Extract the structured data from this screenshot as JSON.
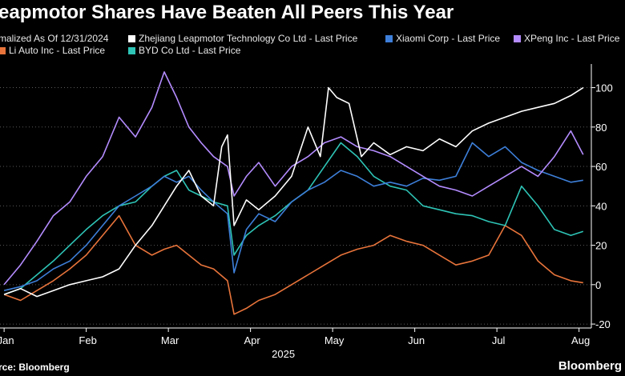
{
  "title": "eapmotor Shares Have Beaten All Peers This Year",
  "source": "rce: Bloomberg",
  "brand": "Bloomberg",
  "chart_data": {
    "type": "line",
    "title": "eapmotor Shares Have Beaten All Peers This Year",
    "legend_prefix": "malized As Of 12/31/2024",
    "x_ticks": [
      "Jan",
      "Feb",
      "Mar",
      "Apr",
      "May",
      "Jun",
      "Jul",
      "Aug"
    ],
    "x_tick_positions": [
      0,
      1,
      2,
      3,
      4,
      5,
      6,
      7
    ],
    "year_label": "2025",
    "xlim": [
      -0.05,
      7.15
    ],
    "ylim": [
      -22,
      112
    ],
    "y_ticks": [
      -20,
      0,
      20,
      40,
      60,
      80,
      100
    ],
    "y_axis_side": "right",
    "grid": "horizontal dotted",
    "series": [
      {
        "name": "Zhejiang Leapmotor Technology Co Ltd - Last Price",
        "color": "#ffffff",
        "x": [
          0,
          0.2,
          0.4,
          0.6,
          0.8,
          1.0,
          1.2,
          1.4,
          1.6,
          1.8,
          1.95,
          2.1,
          2.25,
          2.4,
          2.55,
          2.65,
          2.72,
          2.8,
          2.95,
          3.1,
          3.3,
          3.5,
          3.7,
          3.85,
          3.95,
          4.05,
          4.2,
          4.35,
          4.5,
          4.7,
          4.9,
          5.1,
          5.3,
          5.5,
          5.7,
          5.9,
          6.1,
          6.3,
          6.5,
          6.7,
          6.9,
          7.05
        ],
        "y": [
          -5,
          -2,
          -6,
          -3,
          0,
          2,
          4,
          8,
          20,
          30,
          40,
          50,
          58,
          45,
          40,
          70,
          76,
          30,
          43,
          38,
          45,
          55,
          80,
          65,
          100,
          95,
          92,
          65,
          72,
          66,
          70,
          68,
          74,
          70,
          78,
          82,
          85,
          88,
          90,
          92,
          96,
          100
        ]
      },
      {
        "name": "Xiaomi Corp - Last Price",
        "color": "#3d7fd9",
        "x": [
          0,
          0.2,
          0.4,
          0.6,
          0.8,
          1.0,
          1.2,
          1.4,
          1.6,
          1.8,
          1.95,
          2.1,
          2.25,
          2.4,
          2.55,
          2.72,
          2.8,
          2.95,
          3.1,
          3.3,
          3.5,
          3.7,
          3.9,
          4.1,
          4.3,
          4.5,
          4.7,
          4.9,
          5.1,
          5.3,
          5.5,
          5.7,
          5.9,
          6.1,
          6.3,
          6.5,
          6.7,
          6.9,
          7.05
        ],
        "y": [
          -3,
          -1,
          2,
          8,
          12,
          20,
          30,
          40,
          45,
          50,
          55,
          52,
          55,
          48,
          42,
          36,
          6,
          28,
          36,
          32,
          42,
          48,
          52,
          58,
          55,
          50,
          52,
          50,
          54,
          53,
          55,
          72,
          65,
          70,
          62,
          58,
          55,
          52,
          53
        ]
      },
      {
        "name": "XPeng Inc - Last Price",
        "color": "#b48cff",
        "x": [
          0,
          0.2,
          0.4,
          0.6,
          0.8,
          1.0,
          1.2,
          1.4,
          1.6,
          1.8,
          1.95,
          2.1,
          2.25,
          2.4,
          2.55,
          2.72,
          2.8,
          2.95,
          3.1,
          3.3,
          3.5,
          3.7,
          3.9,
          4.1,
          4.3,
          4.5,
          4.7,
          4.9,
          5.1,
          5.3,
          5.5,
          5.7,
          5.9,
          6.1,
          6.3,
          6.5,
          6.7,
          6.9,
          7.05
        ],
        "y": [
          0,
          10,
          22,
          35,
          42,
          55,
          65,
          85,
          75,
          90,
          108,
          95,
          80,
          72,
          65,
          60,
          45,
          55,
          62,
          50,
          60,
          65,
          72,
          75,
          70,
          68,
          65,
          60,
          55,
          50,
          48,
          45,
          50,
          55,
          60,
          55,
          65,
          78,
          66
        ]
      },
      {
        "name": "Li Auto Inc - Last Price",
        "color": "#e8743b",
        "x": [
          0,
          0.2,
          0.4,
          0.6,
          0.8,
          1.0,
          1.2,
          1.4,
          1.6,
          1.8,
          1.95,
          2.1,
          2.25,
          2.4,
          2.55,
          2.72,
          2.8,
          2.95,
          3.1,
          3.3,
          3.5,
          3.7,
          3.9,
          4.1,
          4.3,
          4.5,
          4.7,
          4.9,
          5.1,
          5.3,
          5.5,
          5.7,
          5.9,
          6.1,
          6.3,
          6.5,
          6.7,
          6.9,
          7.05
        ],
        "y": [
          -5,
          -8,
          -3,
          2,
          8,
          15,
          25,
          35,
          20,
          15,
          18,
          20,
          15,
          10,
          8,
          2,
          -15,
          -12,
          -8,
          -5,
          0,
          5,
          10,
          15,
          18,
          20,
          25,
          22,
          20,
          15,
          10,
          12,
          15,
          30,
          25,
          12,
          5,
          2,
          1
        ]
      },
      {
        "name": "BYD Co Ltd - Last Price",
        "color": "#2ec4b6",
        "x": [
          0,
          0.2,
          0.4,
          0.6,
          0.8,
          1.0,
          1.2,
          1.4,
          1.6,
          1.8,
          1.95,
          2.1,
          2.25,
          2.4,
          2.55,
          2.72,
          2.8,
          2.95,
          3.1,
          3.3,
          3.5,
          3.7,
          3.9,
          4.1,
          4.3,
          4.5,
          4.7,
          4.9,
          5.1,
          5.3,
          5.5,
          5.7,
          5.9,
          6.1,
          6.3,
          6.5,
          6.7,
          6.9,
          7.05
        ],
        "y": [
          -5,
          -2,
          5,
          12,
          20,
          28,
          35,
          40,
          42,
          50,
          55,
          58,
          48,
          45,
          42,
          40,
          15,
          25,
          30,
          35,
          42,
          48,
          60,
          72,
          65,
          55,
          50,
          48,
          40,
          38,
          36,
          35,
          32,
          30,
          50,
          40,
          28,
          25,
          27
        ]
      }
    ]
  }
}
